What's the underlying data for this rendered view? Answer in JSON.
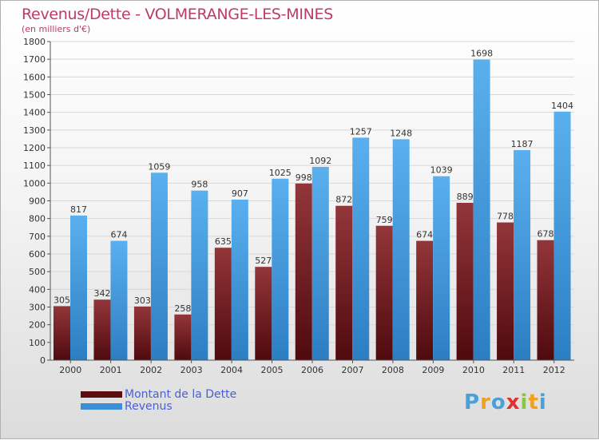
{
  "title": "Revenus/Dette - VOLMERANGE-LES-MINES",
  "subtitle": "(en milliers d'€)",
  "logo": {
    "text": "Proxiti",
    "letters": [
      {
        "ch": "P",
        "color": "#4aa0d8"
      },
      {
        "ch": "r",
        "color": "#f0a020"
      },
      {
        "ch": "o",
        "color": "#4aa0d8"
      },
      {
        "ch": "x",
        "color": "#e23030"
      },
      {
        "ch": "i",
        "color": "#8cc63f"
      },
      {
        "ch": "t",
        "color": "#f0a020"
      },
      {
        "ch": "i",
        "color": "#4aa0d8"
      }
    ]
  },
  "colors": {
    "dette": "#7a1f24",
    "revenus": "#3a8fd8",
    "axis_text": "#333333",
    "grid": "#d8d8d8"
  },
  "legend": [
    {
      "label": "Montant de la Dette",
      "color": "#5a0d12"
    },
    {
      "label": "Revenus",
      "color": "#3a8fd8"
    }
  ],
  "chart_data": {
    "type": "bar",
    "categories": [
      "2000",
      "2001",
      "2002",
      "2003",
      "2004",
      "2005",
      "2006",
      "2007",
      "2008",
      "2009",
      "2010",
      "2011",
      "2012"
    ],
    "series": [
      {
        "name": "Montant de la Dette",
        "values": [
          305,
          342,
          303,
          258,
          635,
          527,
          998,
          872,
          759,
          674,
          889,
          778,
          678
        ]
      },
      {
        "name": "Revenus",
        "values": [
          817,
          674,
          1059,
          958,
          907,
          1025,
          1092,
          1257,
          1248,
          1039,
          1698,
          1187,
          1404
        ]
      }
    ],
    "ylim": [
      0,
      1800
    ],
    "yticks": [
      0,
      100,
      200,
      300,
      400,
      500,
      600,
      700,
      800,
      900,
      1000,
      1100,
      1200,
      1300,
      1400,
      1500,
      1600,
      1700,
      1800
    ],
    "grid": true,
    "legend_position": "bottom-left"
  }
}
